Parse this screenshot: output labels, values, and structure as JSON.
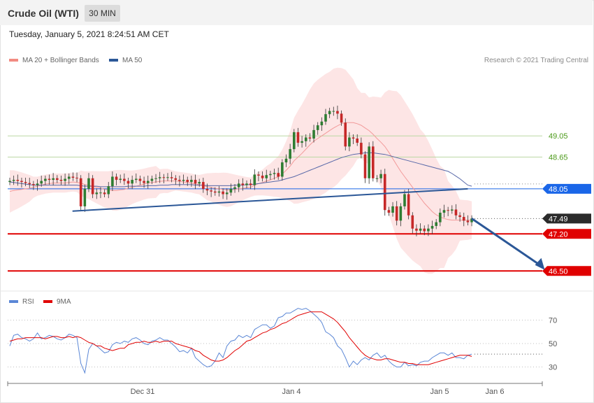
{
  "header": {
    "title": "Crude Oil (WTI)",
    "timeframe": "30 MIN"
  },
  "datetime": "Tuesday, January 5, 2021 8:24:51 AM CET",
  "copyright": "Research © 2021 Trading Central",
  "colors": {
    "bull": "#2e7d32",
    "bear": "#c62828",
    "band": "#fde2e2",
    "ma20": "#f29a9a",
    "ma50": "#5868a8",
    "trendline": "#2b5797",
    "resistance_label": "#4c9a1a",
    "support": "#e00000",
    "pivot": "#1a66e8",
    "last": "#2b2b2b",
    "rsi": "#5b87d6",
    "rsi_ma": "#e00000"
  },
  "chart_data": [
    {
      "type": "candlestick",
      "legend": [
        {
          "name": "MA 20 + Bollinger Bands",
          "color": "#f28b82"
        },
        {
          "name": "MA 50",
          "color": "#2b5797"
        }
      ],
      "x_tick_labels": [
        "Dec 31",
        "Jan 4",
        "Jan 5",
        "Jan 6"
      ],
      "ylim": [
        46.2,
        50.4
      ],
      "levels": [
        {
          "value": 49.05,
          "label": "49.05",
          "kind": "resistance"
        },
        {
          "value": 48.65,
          "label": "48.65",
          "kind": "resistance"
        },
        {
          "value": 48.05,
          "label": "48.05",
          "kind": "pivot"
        },
        {
          "value": 47.49,
          "label": "47.49",
          "kind": "last"
        },
        {
          "value": 47.2,
          "label": "47.20",
          "kind": "support"
        },
        {
          "value": 46.5,
          "label": "46.50",
          "kind": "support"
        }
      ],
      "trendline": {
        "from": {
          "bar": 18,
          "price": 47.63
        },
        "to": {
          "bar": 116,
          "price": 48.05
        }
      },
      "forecast_arrow": {
        "from": {
          "bar": 117,
          "price": 47.49
        },
        "to": {
          "bar": 127,
          "price": 46.52
        }
      },
      "closes": [
        48.2,
        48.22,
        48.2,
        48.18,
        48.16,
        48.14,
        48.12,
        48.15,
        48.2,
        48.24,
        48.22,
        48.25,
        48.22,
        48.2,
        48.24,
        48.28,
        48.26,
        48.25,
        47.72,
        48.05,
        48.25,
        47.95,
        47.98,
        47.98,
        47.95,
        48.1,
        48.28,
        48.22,
        48.24,
        48.2,
        48.15,
        48.22,
        48.24,
        48.2,
        48.16,
        48.2,
        48.24,
        48.25,
        48.27,
        48.26,
        48.27,
        48.25,
        48.22,
        48.2,
        48.22,
        48.18,
        48.22,
        48.15,
        48.18,
        48.05,
        48.02,
        48.0,
        47.98,
        48.0,
        47.95,
        47.98,
        48.05,
        48.08,
        48.15,
        48.12,
        48.15,
        48.12,
        48.32,
        48.3,
        48.25,
        48.31,
        48.33,
        48.35,
        48.28,
        48.55,
        48.62,
        48.8,
        49.12,
        48.92,
        48.95,
        49.02,
        49.0,
        49.16,
        49.25,
        49.32,
        49.46,
        49.52,
        49.52,
        49.47,
        49.3,
        48.85,
        49.02,
        49.0,
        48.92,
        48.7,
        48.25,
        48.85,
        48.25,
        48.25,
        48.33,
        47.65,
        47.6,
        47.72,
        47.45,
        47.72,
        47.95,
        47.55,
        47.3,
        47.26,
        47.3,
        47.25,
        47.3,
        47.35,
        47.42,
        47.6,
        47.65,
        47.64,
        47.66,
        47.55,
        47.52,
        47.45,
        47.42,
        47.49
      ],
      "ma20": [
        48.0,
        48.02,
        48.03,
        48.04,
        48.05,
        48.06,
        48.08,
        48.1,
        48.12,
        48.14,
        48.15,
        48.16,
        48.16,
        48.16,
        48.16,
        48.17,
        48.18,
        48.17,
        48.16,
        48.13,
        48.12,
        48.1,
        48.08,
        48.06,
        48.04,
        48.03,
        48.02,
        48.02,
        48.03,
        48.04,
        48.06,
        48.08,
        48.1,
        48.12,
        48.14,
        48.16,
        48.17,
        48.18,
        48.19,
        48.2,
        48.2,
        48.2,
        48.2,
        48.19,
        48.18,
        48.17,
        48.16,
        48.14,
        48.13,
        48.11,
        48.09,
        48.08,
        48.06,
        48.05,
        48.04,
        48.03,
        48.03,
        48.04,
        48.05,
        48.06,
        48.07,
        48.08,
        48.12,
        48.15,
        48.17,
        48.2,
        48.22,
        48.25,
        48.28,
        48.33,
        48.4,
        48.48,
        48.58,
        48.65,
        48.72,
        48.8,
        48.88,
        48.95,
        49.0,
        49.05,
        49.1,
        49.15,
        49.2,
        49.24,
        49.28,
        49.3,
        49.3,
        49.3,
        49.28,
        49.25,
        49.2,
        49.15,
        49.08,
        49.0,
        48.93,
        48.85,
        48.74,
        48.62,
        48.5,
        48.38,
        48.28,
        48.18,
        48.08,
        47.98,
        47.88,
        47.78,
        47.7,
        47.62,
        47.56,
        47.52,
        47.49,
        47.47,
        47.46,
        47.46,
        47.46,
        47.46,
        47.46,
        47.46
      ],
      "ma50": [
        48.18,
        48.17,
        48.16,
        48.15,
        48.14,
        48.13,
        48.12,
        48.12,
        48.12,
        48.12,
        48.12,
        48.12,
        48.12,
        48.12,
        48.12,
        48.12,
        48.12,
        48.12,
        48.11,
        48.1,
        48.1,
        48.1,
        48.1,
        48.09,
        48.09,
        48.09,
        48.09,
        48.09,
        48.09,
        48.09,
        48.1,
        48.1,
        48.1,
        48.1,
        48.1,
        48.11,
        48.11,
        48.11,
        48.12,
        48.12,
        48.12,
        48.13,
        48.13,
        48.13,
        48.13,
        48.13,
        48.13,
        48.12,
        48.12,
        48.12,
        48.11,
        48.11,
        48.11,
        48.11,
        48.11,
        48.11,
        48.11,
        48.12,
        48.12,
        48.12,
        48.13,
        48.13,
        48.14,
        48.15,
        48.16,
        48.17,
        48.18,
        48.19,
        48.2,
        48.22,
        48.24,
        48.26,
        48.28,
        48.31,
        48.34,
        48.37,
        48.4,
        48.43,
        48.46,
        48.49,
        48.52,
        48.55,
        48.58,
        48.61,
        48.64,
        48.66,
        48.68,
        48.7,
        48.71,
        48.72,
        48.73,
        48.73,
        48.73,
        48.72,
        48.71,
        48.7,
        48.68,
        48.66,
        48.64,
        48.62,
        48.6,
        48.58,
        48.56,
        48.54,
        48.52,
        48.5,
        48.48,
        48.46,
        48.44,
        48.42,
        48.4,
        48.38,
        48.34,
        48.29,
        48.24,
        48.18,
        48.12,
        48.1
      ]
    },
    {
      "type": "line",
      "legend": [
        {
          "name": "RSI",
          "color": "#5b87d6"
        },
        {
          "name": "9MA",
          "color": "#e00000"
        }
      ],
      "ylim": [
        16,
        84
      ],
      "y_tick_labels": [
        "70",
        "50",
        "30"
      ],
      "y_ticks": [
        70,
        50,
        30
      ],
      "x_tick_labels": [
        "Dec 31",
        "Jan 4",
        "Jan 5",
        "Jan 6"
      ],
      "rsi": [
        48,
        57,
        58,
        55,
        54,
        52,
        54,
        59,
        54,
        55,
        57,
        56,
        54,
        53,
        55,
        58,
        57,
        55,
        33,
        25,
        45,
        50,
        48,
        45,
        42,
        43,
        49,
        51,
        50,
        52,
        51,
        54,
        55,
        53,
        50,
        49,
        52,
        53,
        55,
        53,
        53,
        50,
        47,
        43,
        44,
        42,
        46,
        38,
        35,
        32,
        30,
        31,
        35,
        42,
        38,
        48,
        52,
        53,
        57,
        55,
        57,
        55,
        62,
        64,
        66,
        66,
        63,
        65,
        72,
        73,
        76,
        76,
        78,
        80,
        79,
        80,
        78,
        75,
        72,
        68,
        60,
        58,
        55,
        48,
        45,
        38,
        30,
        35,
        32,
        36,
        38,
        36,
        40,
        42,
        38,
        40,
        35,
        32,
        30,
        30,
        34,
        31,
        32,
        31,
        34,
        35,
        35,
        38,
        40,
        42,
        42,
        40,
        42,
        38,
        38,
        37,
        40,
        41
      ],
      "ma9": [
        52,
        53,
        54,
        54,
        55,
        55,
        55,
        55,
        55,
        54,
        55,
        56,
        56,
        55,
        55,
        56,
        55,
        56,
        55,
        53,
        51,
        50,
        48,
        48,
        46,
        45,
        44,
        45,
        46,
        46,
        49,
        50,
        51,
        51,
        52,
        51,
        51,
        52,
        51,
        52,
        52,
        52,
        50,
        49,
        48,
        47,
        46,
        44,
        43,
        40,
        38,
        36,
        35,
        35,
        36,
        38,
        41,
        44,
        46,
        49,
        52,
        53,
        55,
        57,
        59,
        60,
        62,
        63,
        65,
        67,
        68,
        70,
        72,
        74,
        75,
        76,
        77,
        77,
        77,
        77,
        75,
        73,
        71,
        68,
        64,
        60,
        55,
        51,
        47,
        43,
        40,
        38,
        37,
        36,
        36,
        37,
        37,
        36,
        35,
        34,
        34,
        33,
        33,
        32,
        32,
        32,
        32,
        33,
        34,
        35,
        36,
        37,
        38,
        39,
        40,
        40,
        40,
        39
      ]
    }
  ]
}
